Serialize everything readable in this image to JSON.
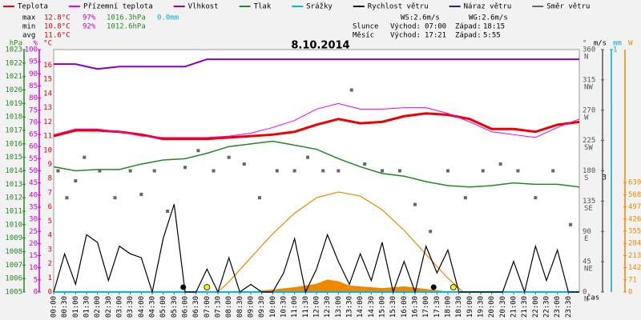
{
  "chart_data": {
    "type": "weather",
    "title": "8.10.2014",
    "stats": {
      "max": {
        "label": "max",
        "temp": "12.8°C",
        "hum": "97%",
        "press": "1016.3hPa",
        "rain": "0.0mm"
      },
      "min": {
        "label": "min",
        "temp": "10.8°C",
        "hum": "92%",
        "press": "1012.6hPa"
      },
      "avg": {
        "label": "avg",
        "temp": "11.6°C"
      }
    },
    "wind_info": {
      "ws": "WS:2.6m/s",
      "wg": "WG:2.6m/s"
    },
    "sun": {
      "label": "Slunce",
      "rise_label": "Východ:",
      "rise": "07:00",
      "set_label": "Západ:",
      "set": "18:15"
    },
    "moon": {
      "label": "Měsíc",
      "rise_label": "Východ:",
      "rise": "17:21",
      "set_label": "Západ:",
      "set": "5:55"
    },
    "axes": {
      "press": {
        "label": "hPa",
        "color": "#228822",
        "lim": [
          1005,
          1023
        ],
        "ticks": [
          1005,
          1006,
          1007,
          1008,
          1009,
          1010,
          1011,
          1012,
          1013,
          1014,
          1015,
          1016,
          1017,
          1018,
          1019,
          1020,
          1021,
          1022,
          1023
        ]
      },
      "hum": {
        "label": "%",
        "color": "#cc00cc",
        "lim": [
          0,
          100
        ],
        "ticks": [
          0,
          5,
          10,
          15,
          20,
          25,
          30,
          35,
          40,
          45,
          50,
          55,
          60,
          65,
          70,
          75,
          80,
          85,
          90,
          95,
          100
        ]
      },
      "temp": {
        "label": "°C",
        "color": "#dd0000",
        "lim": [
          0,
          17.1
        ],
        "ticks": [
          0,
          1,
          2,
          3,
          4,
          5,
          6,
          7,
          8,
          9,
          10,
          11,
          12,
          13,
          14,
          15,
          16
        ]
      },
      "dir": {
        "label": "°",
        "color": "#555555",
        "lim": [
          0,
          360
        ],
        "ticks": [
          0,
          45,
          90,
          135,
          180,
          225,
          270,
          315,
          360
        ],
        "compass": [
          "N",
          "NE",
          "E",
          "SE",
          "S",
          "SW",
          "W",
          "NW",
          "N"
        ]
      },
      "wind": {
        "label": "m/s",
        "color": "#000000",
        "lim": [
          0,
          6.35
        ],
        "ticks": [
          3
        ]
      },
      "rain": {
        "label": "mm",
        "color": "#00aacc",
        "lim": [
          0,
          1
        ],
        "ticks": [
          1
        ]
      },
      "solar": {
        "label": "W",
        "color": "#ee8800",
        "lim": [
          0,
          1415
        ],
        "ticks": [
          0,
          71,
          142,
          213,
          284,
          355,
          426,
          497,
          568,
          639
        ]
      }
    },
    "xlim": [
      0,
      24
    ],
    "xlabel": "čas",
    "xticks": [
      {
        "value": 0,
        "label": "00:00"
      },
      {
        "value": 0.5,
        "label": "00:30"
      },
      {
        "value": 1,
        "label": "01:00"
      },
      {
        "value": 1.5,
        "label": "01:30"
      },
      {
        "value": 2,
        "label": "02:00"
      },
      {
        "value": 2.5,
        "label": "02:30"
      },
      {
        "value": 3,
        "label": "03:00"
      },
      {
        "value": 3.5,
        "label": "03:30"
      },
      {
        "value": 4,
        "label": "04:00"
      },
      {
        "value": 4.5,
        "label": "04:30"
      },
      {
        "value": 5,
        "label": "05:00"
      },
      {
        "value": 5.5,
        "label": "05:30"
      },
      {
        "value": 6,
        "label": "06:00"
      },
      {
        "value": 6.5,
        "label": "06:30"
      },
      {
        "value": 7,
        "label": "07:00"
      },
      {
        "value": 7.5,
        "label": "07:30"
      },
      {
        "value": 8,
        "label": "08:00"
      },
      {
        "value": 8.5,
        "label": "08:30"
      },
      {
        "value": 9,
        "label": "09:00"
      },
      {
        "value": 9.5,
        "label": "09:30"
      },
      {
        "value": 10,
        "label": "10:00"
      },
      {
        "value": 10.5,
        "label": "10:30"
      },
      {
        "value": 11,
        "label": "11:00"
      },
      {
        "value": 11.5,
        "label": "11:30"
      },
      {
        "value": 12,
        "label": "12:00"
      },
      {
        "value": 12.5,
        "label": "12:30"
      },
      {
        "value": 13,
        "label": "13:00"
      },
      {
        "value": 13.5,
        "label": "13:30"
      },
      {
        "value": 14,
        "label": "14:00"
      },
      {
        "value": 14.5,
        "label": "14:30"
      },
      {
        "value": 15,
        "label": "15:00"
      },
      {
        "value": 15.5,
        "label": "15:30"
      },
      {
        "value": 16,
        "label": "16:00"
      },
      {
        "value": 16.5,
        "label": "16:30"
      },
      {
        "value": 17,
        "label": "17:00"
      },
      {
        "value": 17.5,
        "label": "17:30"
      },
      {
        "value": 18,
        "label": "18:00"
      },
      {
        "value": 18.5,
        "label": "18:30"
      },
      {
        "value": 19,
        "label": "19:00"
      },
      {
        "value": 19.5,
        "label": "19:30"
      },
      {
        "value": 20,
        "label": "20:00"
      },
      {
        "value": 20.5,
        "label": "20:30"
      },
      {
        "value": 21,
        "label": "21:00"
      },
      {
        "value": 21.5,
        "label": "21:30"
      },
      {
        "value": 22,
        "label": "22:00"
      },
      {
        "value": 22.5,
        "label": "22:30"
      },
      {
        "value": 23,
        "label": "23:00"
      },
      {
        "value": 23.5,
        "label": "23:30"
      }
    ],
    "series": [
      {
        "name": "Teplota",
        "color": "#ee0000",
        "axis": "temp",
        "width": 3,
        "x": [
          0,
          1,
          2,
          3,
          4,
          5,
          6,
          7,
          8,
          9,
          10,
          11,
          12,
          13,
          14,
          15,
          16,
          17,
          18,
          19,
          20,
          21,
          22,
          23,
          24
        ],
        "values": [
          11.0,
          11.4,
          11.4,
          11.3,
          11.1,
          10.8,
          10.8,
          10.8,
          10.9,
          11.0,
          11.1,
          11.3,
          11.8,
          12.2,
          11.9,
          12.0,
          12.4,
          12.6,
          12.5,
          12.2,
          11.5,
          11.5,
          11.3,
          11.8,
          12.0
        ]
      },
      {
        "name": "Přízemní teplota",
        "color": "#ee00ee",
        "axis": "temp",
        "width": 1,
        "x": [
          0,
          1,
          2,
          3,
          4,
          5,
          6,
          7,
          8,
          9,
          10,
          11,
          12,
          13,
          14,
          15,
          16,
          17,
          18,
          19,
          20,
          21,
          22,
          23,
          24
        ],
        "values": [
          11.1,
          11.5,
          11.5,
          11.3,
          11.0,
          10.9,
          10.9,
          10.9,
          11.0,
          11.2,
          11.6,
          12.1,
          12.9,
          13.3,
          12.9,
          12.9,
          13.0,
          13.0,
          12.6,
          12.0,
          11.3,
          11.1,
          10.9,
          11.6,
          12.2
        ]
      },
      {
        "name": "Vlhkost",
        "color": "#8800cc",
        "axis": "hum",
        "width": 2,
        "x": [
          0,
          1,
          2,
          3,
          4,
          5,
          6,
          7,
          8,
          9,
          10,
          11,
          12,
          13,
          14,
          15,
          16,
          17,
          18,
          19,
          20,
          21,
          22,
          23,
          24
        ],
        "values": [
          94,
          94,
          92,
          93,
          93,
          93,
          93,
          96,
          96,
          96,
          96,
          96,
          96,
          96,
          96,
          96,
          96,
          96,
          96,
          96,
          96,
          96,
          96,
          96,
          96
        ]
      },
      {
        "name": "Tlak",
        "color": "#228822",
        "axis": "press",
        "width": 1.5,
        "x": [
          0,
          1,
          2,
          3,
          4,
          5,
          6,
          7,
          8,
          9,
          10,
          11,
          12,
          13,
          14,
          15,
          16,
          17,
          18,
          19,
          20,
          21,
          22,
          23,
          24
        ],
        "values": [
          1014.3,
          1014.0,
          1014.1,
          1014.1,
          1014.5,
          1014.8,
          1014.9,
          1015.3,
          1015.8,
          1016.0,
          1016.2,
          1015.9,
          1015.6,
          1014.9,
          1014.3,
          1013.8,
          1013.6,
          1013.2,
          1012.9,
          1012.8,
          1012.9,
          1013.1,
          1013.0,
          1013.0,
          1012.8
        ]
      },
      {
        "name": "Srážky",
        "color": "#00bbdd",
        "axis": "rain",
        "width": 2,
        "x": [
          0,
          24
        ],
        "values": [
          0,
          0
        ]
      },
      {
        "name": "Rychlost větru",
        "color": "#000000",
        "axis": "wind",
        "width": 1.2,
        "x": [
          0,
          0.5,
          1,
          1.5,
          2,
          2.5,
          3,
          3.5,
          4,
          4.5,
          5,
          5.5,
          6,
          6.5,
          7,
          7.5,
          8,
          8.5,
          9,
          9.5,
          10,
          10.5,
          11,
          11.5,
          12,
          12.5,
          13,
          13.5,
          14,
          14.5,
          15,
          15.5,
          16,
          16.5,
          17,
          17.5,
          18,
          18.5,
          19,
          19.5,
          20,
          20.5,
          21,
          21.5,
          22,
          22.5,
          23,
          23.5,
          24
        ],
        "values": [
          0,
          1.0,
          0.2,
          1.5,
          1.3,
          0.3,
          1.2,
          1.0,
          0.9,
          0,
          1.4,
          2.3,
          0,
          0,
          0.6,
          0,
          0.9,
          0,
          0.2,
          0,
          0,
          0.5,
          1.4,
          0,
          0.6,
          1.5,
          0.8,
          0.2,
          1.0,
          0.3,
          1.3,
          0,
          0.8,
          0,
          1.2,
          0.5,
          1.1,
          0,
          0,
          0,
          0,
          0,
          0.8,
          0,
          1.2,
          0.3,
          1.1,
          0,
          0
        ]
      },
      {
        "name": "Náraz větru",
        "color": "#222288",
        "axis": "wind",
        "width": 1,
        "x": [],
        "values": []
      },
      {
        "name": "Směr větru",
        "color": "#666666",
        "axis": "dir",
        "points": true,
        "x": [
          0.2,
          0.6,
          1.0,
          1.4,
          2.1,
          2.8,
          3.5,
          4.0,
          4.6,
          5.2,
          6.0,
          6.6,
          7.3,
          8.0,
          8.7,
          9.4,
          10.2,
          11.0,
          11.6,
          12.3,
          13.0,
          13.6,
          14.2,
          15.0,
          15.8,
          16.5,
          17.2,
          18.0,
          18.8,
          19.6,
          20.4,
          21.2,
          22.0,
          22.8,
          23.6
        ],
        "values": [
          180,
          140,
          165,
          200,
          180,
          140,
          180,
          145,
          180,
          120,
          185,
          210,
          180,
          200,
          190,
          140,
          180,
          180,
          200,
          180,
          180,
          300,
          190,
          180,
          180,
          130,
          90,
          180,
          140,
          180,
          190,
          180,
          140,
          180,
          100
        ]
      }
    ],
    "solar": {
      "color": "#ee8800",
      "x": [
        7.5,
        8,
        9,
        10,
        11,
        12,
        13,
        14,
        15,
        16,
        17,
        18,
        18.7
      ],
      "values": [
        0,
        60,
        200,
        340,
        460,
        550,
        584,
        560,
        480,
        360,
        220,
        80,
        0
      ]
    },
    "solar_actual": {
      "color": "#ee8800",
      "x": [
        9,
        10,
        11,
        12,
        12.5,
        13,
        13.5,
        14,
        15,
        16,
        17,
        18
      ],
      "values": [
        0,
        12,
        25,
        45,
        70,
        60,
        35,
        30,
        20,
        30,
        15,
        0
      ]
    }
  }
}
